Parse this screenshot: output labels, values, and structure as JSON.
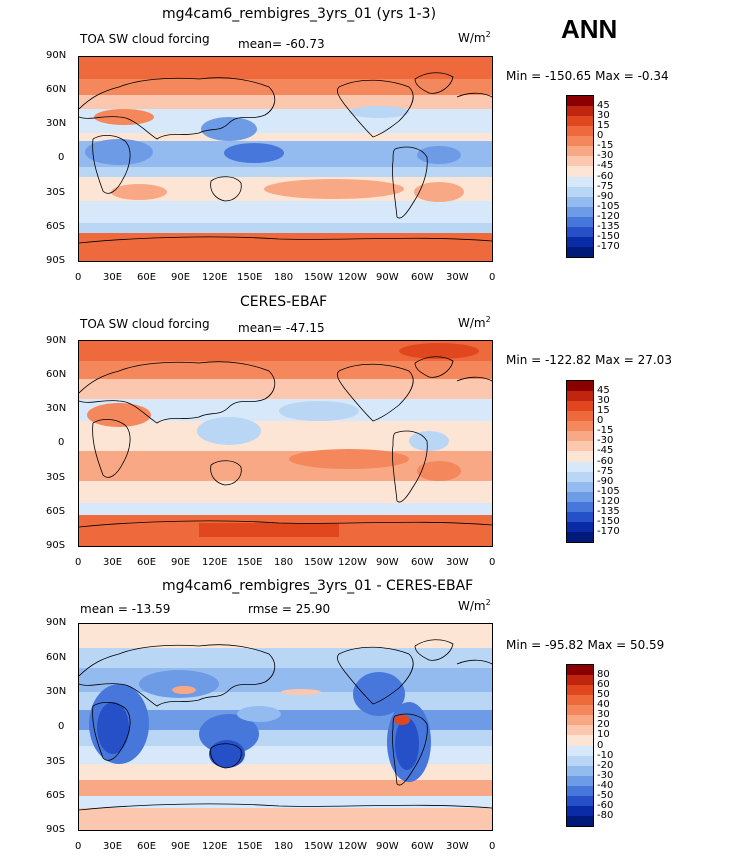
{
  "season": "ANN",
  "panels": [
    {
      "id": "model",
      "title": "mg4cam6_rembigres_3yrs_01 (yrs 1-3)",
      "left_label": "TOA SW cloud forcing",
      "center_label": "mean= -60.73",
      "units": "W/m",
      "units_sup": "2",
      "minmax": "Min = -150.65 Max =  -0.34",
      "levels": [
        "45",
        "30",
        "15",
        "0",
        "-15",
        "-30",
        "-45",
        "-60",
        "-75",
        "-90",
        "-105",
        "-120",
        "-135",
        "-150",
        "-170"
      ],
      "colors": [
        "#8b0000",
        "#c0260f",
        "#e0471e",
        "#ee6a3d",
        "#f4875c",
        "#f8a884",
        "#fbc7ae",
        "#fde5d6",
        "#d6e8f9",
        "#b9d6f5",
        "#94bbef",
        "#6e9be6",
        "#4877dc",
        "#2550c8",
        "#0a2ba6",
        "#001a7a"
      ]
    },
    {
      "id": "obs",
      "title": "CERES-EBAF",
      "left_label": "TOA SW cloud forcing",
      "center_label": "mean= -47.15",
      "units": "W/m",
      "units_sup": "2",
      "minmax": "Min = -122.82 Max =  27.03",
      "levels": [
        "45",
        "30",
        "15",
        "0",
        "-15",
        "-30",
        "-45",
        "-60",
        "-75",
        "-90",
        "-105",
        "-120",
        "-135",
        "-150",
        "-170"
      ],
      "colors": [
        "#8b0000",
        "#c0260f",
        "#e0471e",
        "#ee6a3d",
        "#f4875c",
        "#f8a884",
        "#fbc7ae",
        "#fde5d6",
        "#d6e8f9",
        "#b9d6f5",
        "#94bbef",
        "#6e9be6",
        "#4877dc",
        "#2550c8",
        "#0a2ba6",
        "#001a7a"
      ]
    },
    {
      "id": "diff",
      "title": "mg4cam6_rembigres_3yrs_01 - CERES-EBAF",
      "left_label": "mean = -13.59",
      "center_label": "rmse =  25.90",
      "units": "W/m",
      "units_sup": "2",
      "minmax": "Min = -95.82 Max =  50.59",
      "levels": [
        "80",
        "60",
        "50",
        "40",
        "30",
        "20",
        "10",
        "0",
        "-10",
        "-20",
        "-30",
        "-40",
        "-50",
        "-60",
        "-80"
      ],
      "colors": [
        "#8b0000",
        "#c0260f",
        "#e0471e",
        "#ee6a3d",
        "#f4875c",
        "#f8a884",
        "#fbc7ae",
        "#fde5d6",
        "#d6e8f9",
        "#b9d6f5",
        "#94bbef",
        "#6e9be6",
        "#4877dc",
        "#2550c8",
        "#0a2ba6",
        "#001a7a"
      ]
    }
  ],
  "lat_ticks": [
    "90N",
    "60N",
    "30N",
    "0",
    "30S",
    "60S",
    "90S"
  ],
  "lon_ticks": [
    "0",
    "30E",
    "60E",
    "90E",
    "120E",
    "150E",
    "180",
    "150W",
    "120W",
    "90W",
    "60W",
    "30W",
    "0"
  ]
}
